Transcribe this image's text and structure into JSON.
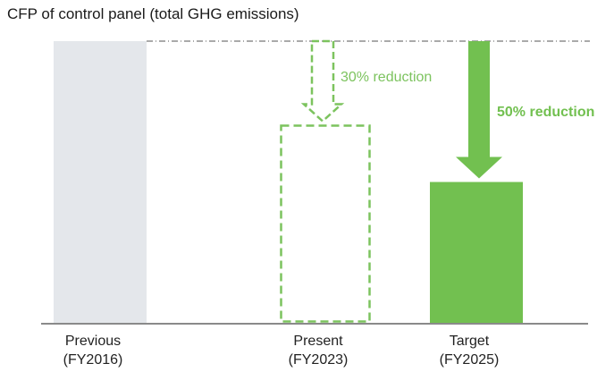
{
  "chart_data": {
    "type": "bar",
    "title": "CFP of control panel (total GHG emissions)",
    "xlabel": "",
    "ylabel": "",
    "ylim": [
      0,
      100
    ],
    "grid": false,
    "categories": [
      {
        "line1": "Previous",
        "line2": "(FY2016)"
      },
      {
        "line1": "Present",
        "line2": "(FY2023)"
      },
      {
        "line1": "Target",
        "line2": "(FY2025)"
      }
    ],
    "values": [
      100,
      70,
      50
    ],
    "styles": [
      "solid-grey",
      "dashed-green",
      "solid-green"
    ],
    "colors": {
      "grey": "#e4e7eb",
      "green": "#72c050",
      "green_dashed": "#7cc35e",
      "axis": "#8a8a8a",
      "reference": "#555555"
    },
    "annotations": [
      {
        "text": "30% reduction",
        "category": 1,
        "style": "dashed"
      },
      {
        "text": "50% reduction",
        "category": 2,
        "style": "solid"
      }
    ]
  }
}
